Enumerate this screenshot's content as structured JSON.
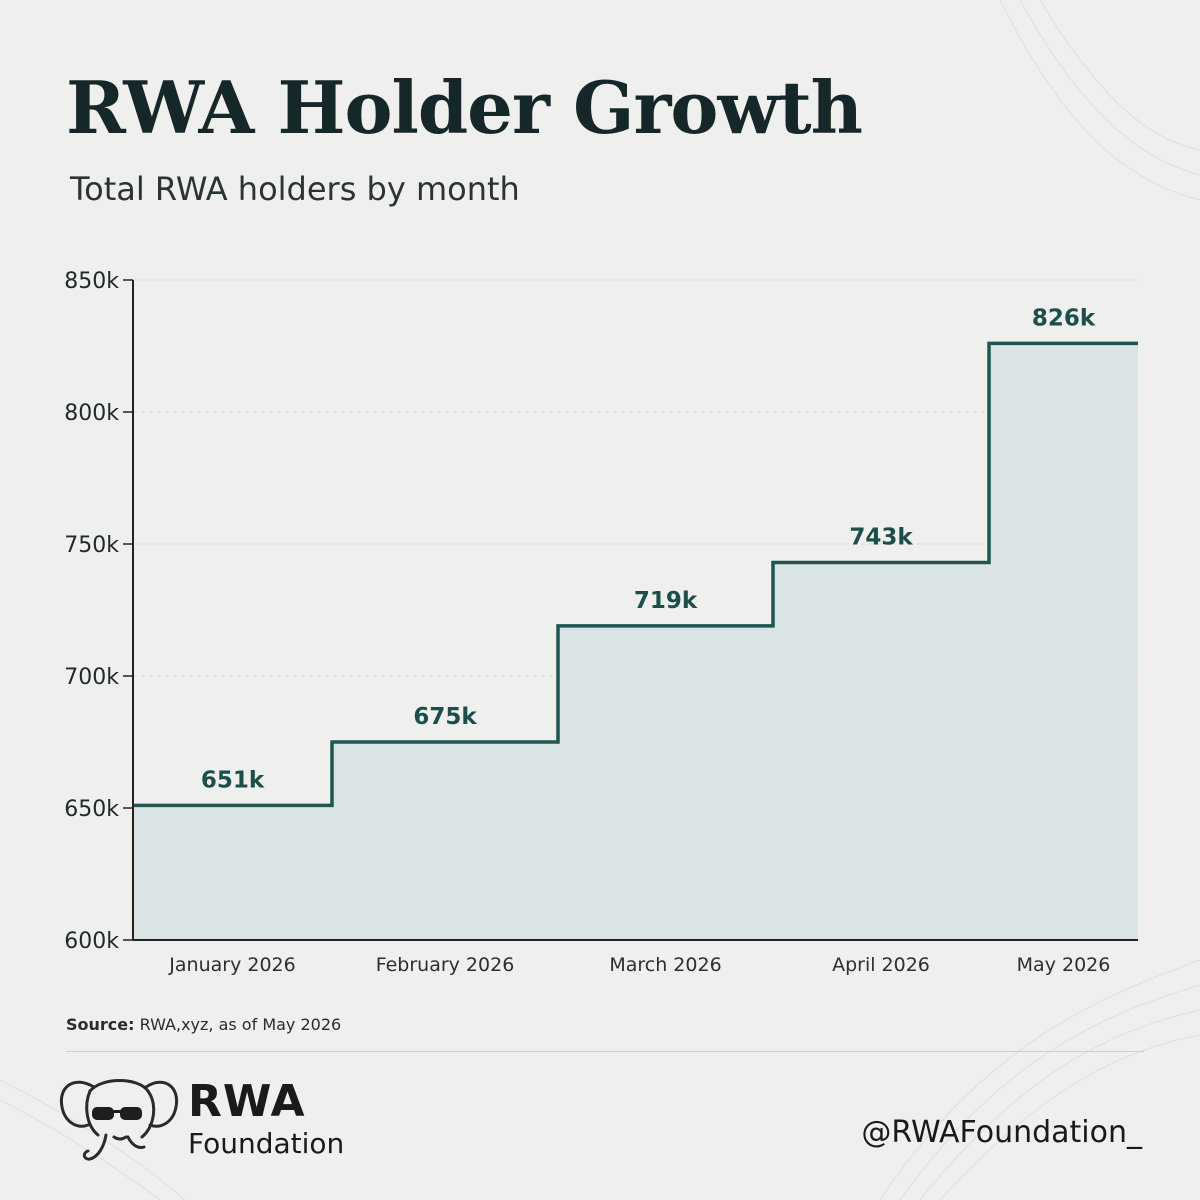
{
  "title": "RWA Holder Growth",
  "subtitle": "Total RWA holders by month",
  "chart_data": {
    "type": "line",
    "style": "step",
    "categories": [
      "January 2026",
      "February 2026",
      "March 2026",
      "April 2026",
      "May 2026"
    ],
    "values": [
      651,
      675,
      719,
      743,
      826
    ],
    "data_labels": [
      "651k",
      "675k",
      "719k",
      "743k",
      "826k"
    ],
    "ylim": [
      600,
      850
    ],
    "yticks": [
      600,
      650,
      700,
      750,
      800,
      850
    ],
    "ytick_labels": [
      "600k",
      "650k",
      "700k",
      "750k",
      "800k",
      "850k"
    ],
    "grid": true,
    "line_color": "#1d5752",
    "fill_color": "#d7e2e2"
  },
  "source": {
    "label": "Source:",
    "text": "RWA,xyz, as of May 2026"
  },
  "brand": {
    "name": "RWA",
    "sub": "Foundation",
    "logo_icon": "elephant-sunglasses-icon"
  },
  "handle": "@RWAFoundation_"
}
